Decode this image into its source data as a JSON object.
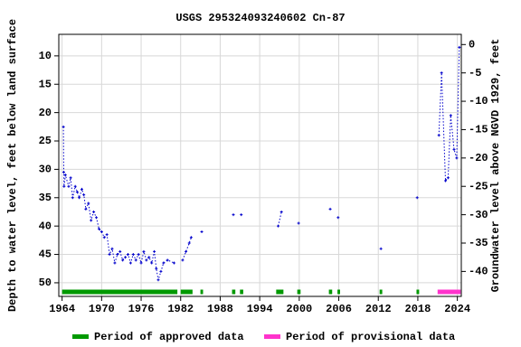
{
  "chart_data": {
    "type": "line",
    "title": "USGS 295324093240602 Cn-87",
    "y_label": "Depth to water level, feet below land surface",
    "y2_label": "Groundwater level above NGVD 1929, feet",
    "xlim": [
      1963.5,
      2024.6
    ],
    "xticks": [
      1964,
      1970,
      1976,
      1982,
      1988,
      1994,
      2000,
      2006,
      2012,
      2018,
      2024
    ],
    "ylim": [
      6.2,
      52.4
    ],
    "yticks": [
      10,
      15,
      20,
      25,
      30,
      35,
      40,
      45,
      50
    ],
    "y2lim": [
      1.8,
      -44.4
    ],
    "y2ticks": [
      0,
      -5,
      -10,
      -15,
      -20,
      -25,
      -30,
      -35,
      -40
    ],
    "grid": true,
    "series": [
      {
        "name": "Depth to water level",
        "color": "#0000cc",
        "x": [
          1964.2,
          1964.25,
          1964.3,
          1964.5,
          1965,
          1965.3,
          1965.6,
          1966,
          1966.3,
          1966.6,
          1967,
          1967.3,
          1967.6,
          1968,
          1968.4,
          1968.8,
          1969.2,
          1969.6,
          1970,
          1970.4,
          1970.8,
          1971.2,
          1971.6,
          1972,
          1972.4,
          1972.8,
          1973.2,
          1973.6,
          1974,
          1974.4,
          1974.8,
          1975.2,
          1975.6,
          1976,
          1976.4,
          1976.8,
          1977.2,
          1977.6,
          1978,
          1978.3,
          1978.6,
          1979,
          1979.4,
          1980,
          1981,
          null,
          1982.3,
          1982.8,
          1983.3,
          1983.6,
          null,
          1985.2,
          null,
          1990,
          null,
          1991.2,
          null,
          1996.8,
          1997.3,
          null,
          1999.9,
          null,
          2004.7,
          null,
          2005.9,
          null,
          2012.4,
          null,
          2017.9,
          null,
          2021.2,
          2021.6,
          2022.2,
          2022.6,
          2023,
          2023.5,
          2023.9,
          2024.3
        ],
        "values": [
          22.5,
          30.5,
          33,
          31,
          33,
          31.5,
          35,
          33,
          34,
          35,
          33.5,
          34.5,
          37,
          36,
          39,
          37.5,
          38.5,
          40.5,
          41,
          42,
          41.5,
          45,
          44,
          46.5,
          45,
          44.5,
          46,
          45.5,
          45,
          46.5,
          45,
          46,
          45,
          46.5,
          44.5,
          46,
          45.5,
          46.5,
          44.5,
          47.5,
          49.5,
          48,
          46.5,
          46,
          46.5,
          null,
          46,
          44.5,
          43,
          42,
          null,
          41,
          null,
          38,
          null,
          38,
          null,
          40,
          37.5,
          null,
          39.5,
          null,
          37,
          null,
          38.5,
          null,
          44,
          null,
          35,
          null,
          24,
          13,
          32,
          31.5,
          20.5,
          26.5,
          28,
          8.5
        ]
      }
    ],
    "periods": [
      {
        "name": "Period of approved data",
        "color": "#009900",
        "ranges": [
          [
            1964,
            1981.5
          ],
          [
            1982,
            1983.8
          ],
          [
            1985,
            1985.4
          ],
          [
            1989.8,
            1990.3
          ],
          [
            1991,
            1991.5
          ],
          [
            1996.5,
            1997.6
          ],
          [
            1999.7,
            2000.2
          ],
          [
            2004.5,
            2005
          ],
          [
            2005.8,
            2006.2
          ],
          [
            2012.2,
            2012.6
          ],
          [
            2017.8,
            2018.2
          ]
        ]
      },
      {
        "name": "Period of provisional data",
        "color": "#ff33cc",
        "ranges": [
          [
            2021,
            2024.5
          ]
        ]
      }
    ]
  }
}
